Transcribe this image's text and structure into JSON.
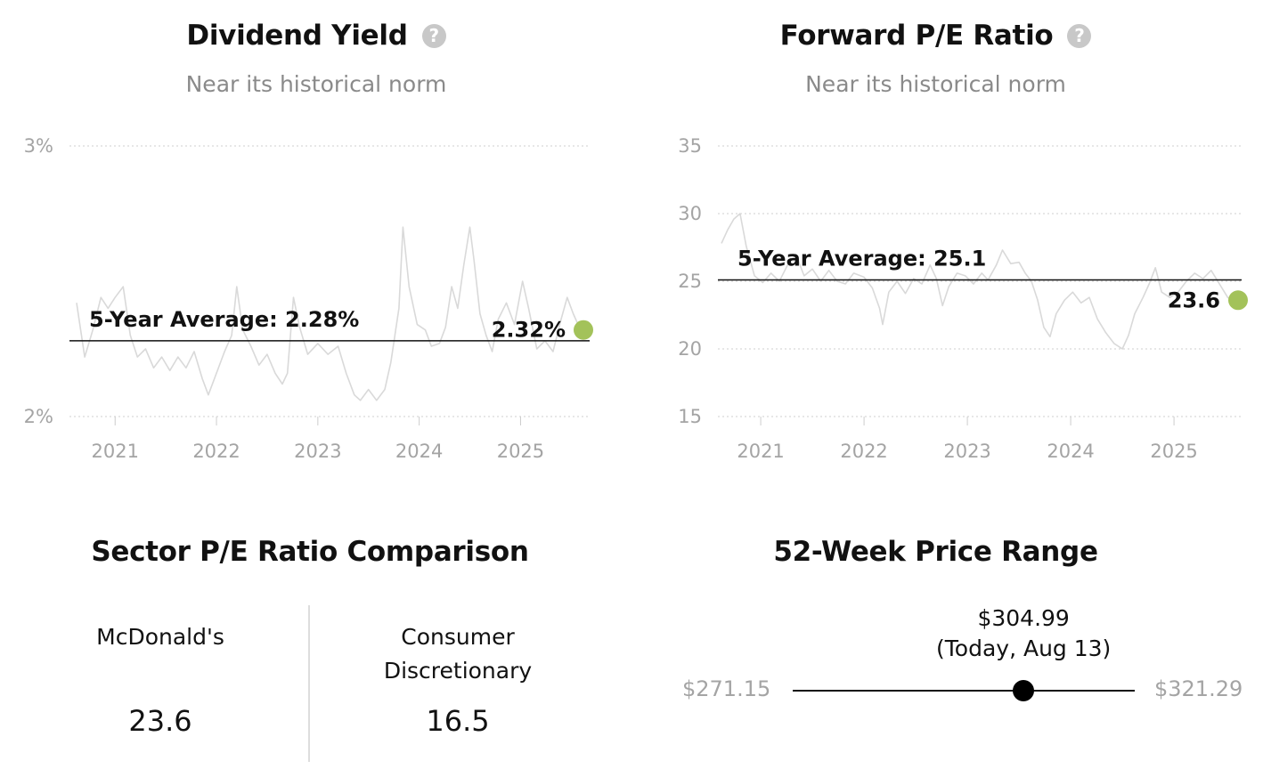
{
  "dividend_yield": {
    "title": "Dividend Yield",
    "subtitle": "Near its historical norm",
    "help_icon": "question-circle-icon"
  },
  "forward_pe": {
    "title": "Forward P/E Ratio",
    "subtitle": "Near its historical norm",
    "help_icon": "question-circle-icon"
  },
  "sector_pe": {
    "title": "Sector P/E Ratio Comparison",
    "company": {
      "name": "McDonald's",
      "value": "23.6"
    },
    "sector": {
      "name_line1": "Consumer",
      "name_line2": "Discretionary",
      "value": "16.5"
    }
  },
  "price_range": {
    "title": "52-Week Price Range",
    "low_label": "$271.15",
    "high_label": "$321.29",
    "current_label": "$304.99",
    "current_note": "(Today, Aug 13)",
    "low": 271.15,
    "high": 321.29,
    "current": 304.99
  },
  "colors": {
    "line": "#d9d9d9",
    "average_line": "#111111",
    "current_dot": "#a3c25a",
    "grid": "#cfcfcf",
    "axis_text": "#a4a4a4"
  },
  "chart_data": [
    {
      "type": "line",
      "title": "Dividend Yield",
      "y_unit": "%",
      "ylim": [
        2,
        3
      ],
      "xlim": [
        2020.62,
        2025.62
      ],
      "y_ticks": [
        {
          "v": 2,
          "label": "2%"
        },
        {
          "v": 3,
          "label": "3%"
        }
      ],
      "x_ticks": [
        {
          "v": 2021,
          "label": "2021"
        },
        {
          "v": 2022,
          "label": "2022"
        },
        {
          "v": 2023,
          "label": "2023"
        },
        {
          "v": 2024,
          "label": "2024"
        },
        {
          "v": 2025,
          "label": "2025"
        }
      ],
      "grid": true,
      "series": [
        {
          "values": [
            [
              2020.62,
              2.42
            ],
            [
              2020.7,
              2.22
            ],
            [
              2020.78,
              2.32
            ],
            [
              2020.86,
              2.44
            ],
            [
              2020.93,
              2.4
            ],
            [
              2021.0,
              2.44
            ],
            [
              2021.08,
              2.48
            ],
            [
              2021.15,
              2.3
            ],
            [
              2021.22,
              2.22
            ],
            [
              2021.3,
              2.25
            ],
            [
              2021.38,
              2.18
            ],
            [
              2021.46,
              2.22
            ],
            [
              2021.54,
              2.17
            ],
            [
              2021.62,
              2.22
            ],
            [
              2021.7,
              2.18
            ],
            [
              2021.78,
              2.24
            ],
            [
              2021.86,
              2.14
            ],
            [
              2021.92,
              2.08
            ],
            [
              2022.0,
              2.16
            ],
            [
              2022.08,
              2.24
            ],
            [
              2022.15,
              2.3
            ],
            [
              2022.2,
              2.48
            ],
            [
              2022.26,
              2.32
            ],
            [
              2022.34,
              2.26
            ],
            [
              2022.42,
              2.19
            ],
            [
              2022.5,
              2.23
            ],
            [
              2022.58,
              2.16
            ],
            [
              2022.65,
              2.12
            ],
            [
              2022.7,
              2.16
            ],
            [
              2022.76,
              2.44
            ],
            [
              2022.82,
              2.33
            ],
            [
              2022.9,
              2.23
            ],
            [
              2023.0,
              2.27
            ],
            [
              2023.1,
              2.23
            ],
            [
              2023.2,
              2.26
            ],
            [
              2023.28,
              2.16
            ],
            [
              2023.36,
              2.08
            ],
            [
              2023.42,
              2.06
            ],
            [
              2023.5,
              2.1
            ],
            [
              2023.58,
              2.06
            ],
            [
              2023.66,
              2.1
            ],
            [
              2023.72,
              2.2
            ],
            [
              2023.8,
              2.4
            ],
            [
              2023.84,
              2.7
            ],
            [
              2023.9,
              2.48
            ],
            [
              2023.98,
              2.34
            ],
            [
              2024.06,
              2.32
            ],
            [
              2024.12,
              2.26
            ],
            [
              2024.2,
              2.27
            ],
            [
              2024.26,
              2.33
            ],
            [
              2024.32,
              2.48
            ],
            [
              2024.38,
              2.4
            ],
            [
              2024.44,
              2.56
            ],
            [
              2024.5,
              2.7
            ],
            [
              2024.54,
              2.58
            ],
            [
              2024.6,
              2.38
            ],
            [
              2024.66,
              2.3
            ],
            [
              2024.72,
              2.24
            ],
            [
              2024.78,
              2.36
            ],
            [
              2024.86,
              2.42
            ],
            [
              2024.94,
              2.34
            ],
            [
              2025.02,
              2.5
            ],
            [
              2025.08,
              2.4
            ],
            [
              2025.16,
              2.25
            ],
            [
              2025.24,
              2.28
            ],
            [
              2025.32,
              2.24
            ],
            [
              2025.4,
              2.36
            ],
            [
              2025.46,
              2.44
            ],
            [
              2025.52,
              2.38
            ],
            [
              2025.58,
              2.33
            ],
            [
              2025.62,
              2.32
            ]
          ]
        }
      ],
      "average": {
        "value": 2.28,
        "label": "5-Year Average: 2.28%"
      },
      "current": {
        "x": 2025.62,
        "value": 2.32,
        "label": "2.32%"
      }
    },
    {
      "type": "line",
      "title": "Forward P/E Ratio",
      "ylim": [
        15,
        35
      ],
      "xlim": [
        2020.62,
        2025.62
      ],
      "y_ticks": [
        {
          "v": 15,
          "label": "15"
        },
        {
          "v": 20,
          "label": "20"
        },
        {
          "v": 25,
          "label": "25"
        },
        {
          "v": 30,
          "label": "30"
        },
        {
          "v": 35,
          "label": "35"
        }
      ],
      "x_ticks": [
        {
          "v": 2021,
          "label": "2021"
        },
        {
          "v": 2022,
          "label": "2022"
        },
        {
          "v": 2023,
          "label": "2023"
        },
        {
          "v": 2024,
          "label": "2024"
        },
        {
          "v": 2025,
          "label": "2025"
        }
      ],
      "grid": true,
      "series": [
        {
          "values": [
            [
              2020.62,
              27.8
            ],
            [
              2020.68,
              28.8
            ],
            [
              2020.74,
              29.6
            ],
            [
              2020.8,
              30.0
            ],
            [
              2020.86,
              27.6
            ],
            [
              2020.94,
              25.4
            ],
            [
              2021.02,
              24.9
            ],
            [
              2021.1,
              25.6
            ],
            [
              2021.18,
              25.0
            ],
            [
              2021.26,
              26.2
            ],
            [
              2021.34,
              27.0
            ],
            [
              2021.42,
              25.4
            ],
            [
              2021.5,
              25.9
            ],
            [
              2021.58,
              25.0
            ],
            [
              2021.66,
              25.8
            ],
            [
              2021.74,
              25.0
            ],
            [
              2021.82,
              24.8
            ],
            [
              2021.9,
              25.6
            ],
            [
              2022.0,
              25.3
            ],
            [
              2022.08,
              24.5
            ],
            [
              2022.15,
              23.0
            ],
            [
              2022.18,
              21.8
            ],
            [
              2022.24,
              24.2
            ],
            [
              2022.32,
              25.0
            ],
            [
              2022.4,
              24.1
            ],
            [
              2022.48,
              25.2
            ],
            [
              2022.56,
              24.8
            ],
            [
              2022.64,
              26.2
            ],
            [
              2022.7,
              25.2
            ],
            [
              2022.76,
              23.2
            ],
            [
              2022.82,
              24.6
            ],
            [
              2022.9,
              25.6
            ],
            [
              2022.98,
              25.4
            ],
            [
              2023.06,
              24.8
            ],
            [
              2023.14,
              25.6
            ],
            [
              2023.2,
              25.1
            ],
            [
              2023.28,
              26.2
            ],
            [
              2023.34,
              27.3
            ],
            [
              2023.42,
              26.3
            ],
            [
              2023.5,
              26.4
            ],
            [
              2023.56,
              25.6
            ],
            [
              2023.62,
              25.0
            ],
            [
              2023.68,
              23.6
            ],
            [
              2023.74,
              21.6
            ],
            [
              2023.8,
              20.9
            ],
            [
              2023.86,
              22.6
            ],
            [
              2023.94,
              23.6
            ],
            [
              2024.02,
              24.2
            ],
            [
              2024.1,
              23.4
            ],
            [
              2024.18,
              23.8
            ],
            [
              2024.26,
              22.2
            ],
            [
              2024.34,
              21.2
            ],
            [
              2024.42,
              20.4
            ],
            [
              2024.5,
              20.0
            ],
            [
              2024.56,
              21.0
            ],
            [
              2024.62,
              22.6
            ],
            [
              2024.7,
              23.8
            ],
            [
              2024.76,
              24.8
            ],
            [
              2024.82,
              26.0
            ],
            [
              2024.88,
              24.2
            ],
            [
              2024.96,
              23.8
            ],
            [
              2025.04,
              24.2
            ],
            [
              2025.12,
              25.0
            ],
            [
              2025.2,
              25.6
            ],
            [
              2025.28,
              25.2
            ],
            [
              2025.36,
              25.8
            ],
            [
              2025.44,
              24.8
            ],
            [
              2025.52,
              23.8
            ],
            [
              2025.58,
              23.4
            ],
            [
              2025.62,
              23.6
            ]
          ]
        }
      ],
      "average": {
        "value": 25.1,
        "label": "5-Year Average: 25.1"
      },
      "current": {
        "x": 2025.62,
        "value": 23.6,
        "label": "23.6"
      }
    }
  ]
}
